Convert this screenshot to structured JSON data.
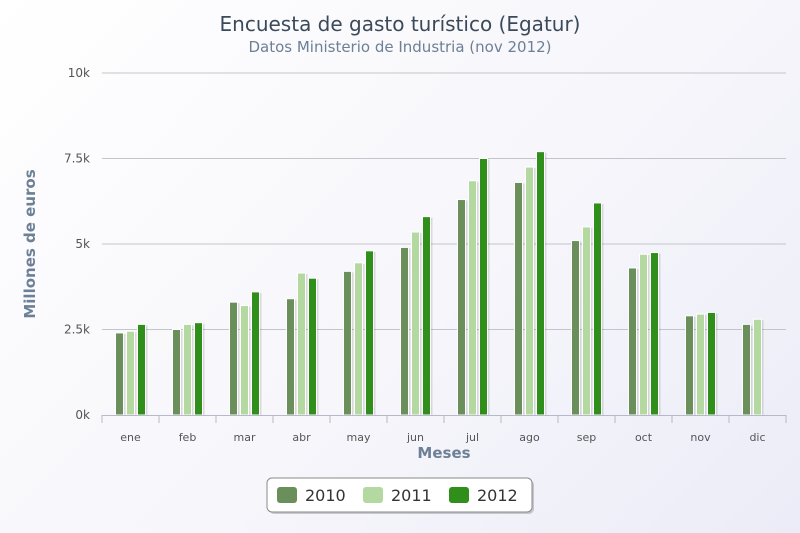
{
  "chart_data": {
    "type": "bar",
    "title": "Encuesta de gasto turístico (Egatur)",
    "subtitle": "Datos Ministerio de Industria (nov 2012)",
    "xlabel": "Meses",
    "ylabel": "Millones de euros",
    "categories": [
      "ene",
      "feb",
      "mar",
      "abr",
      "may",
      "jun",
      "jul",
      "ago",
      "sep",
      "oct",
      "nov",
      "dic"
    ],
    "ylim": [
      0,
      10000
    ],
    "yticks": [
      {
        "value": 0,
        "label": "0k"
      },
      {
        "value": 2500,
        "label": "2.5k"
      },
      {
        "value": 5000,
        "label": "5k"
      },
      {
        "value": 7500,
        "label": "7.5k"
      },
      {
        "value": 10000,
        "label": "10k"
      }
    ],
    "grid": true,
    "legend_position": "bottom-center",
    "series": [
      {
        "name": "2010",
        "color": "#6a8f5a",
        "values": [
          2400,
          2500,
          3300,
          3400,
          4200,
          4900,
          6300,
          6800,
          5100,
          4300,
          2900,
          2650
        ]
      },
      {
        "name": "2011",
        "color": "#b3d9a0",
        "values": [
          2450,
          2650,
          3200,
          4150,
          4450,
          5350,
          6850,
          7250,
          5500,
          4700,
          2950,
          2800
        ]
      },
      {
        "name": "2012",
        "color": "#2f8f1a",
        "values": [
          2650,
          2700,
          3600,
          4000,
          4800,
          5800,
          7500,
          7700,
          6200,
          4750,
          3000,
          null
        ]
      }
    ]
  }
}
